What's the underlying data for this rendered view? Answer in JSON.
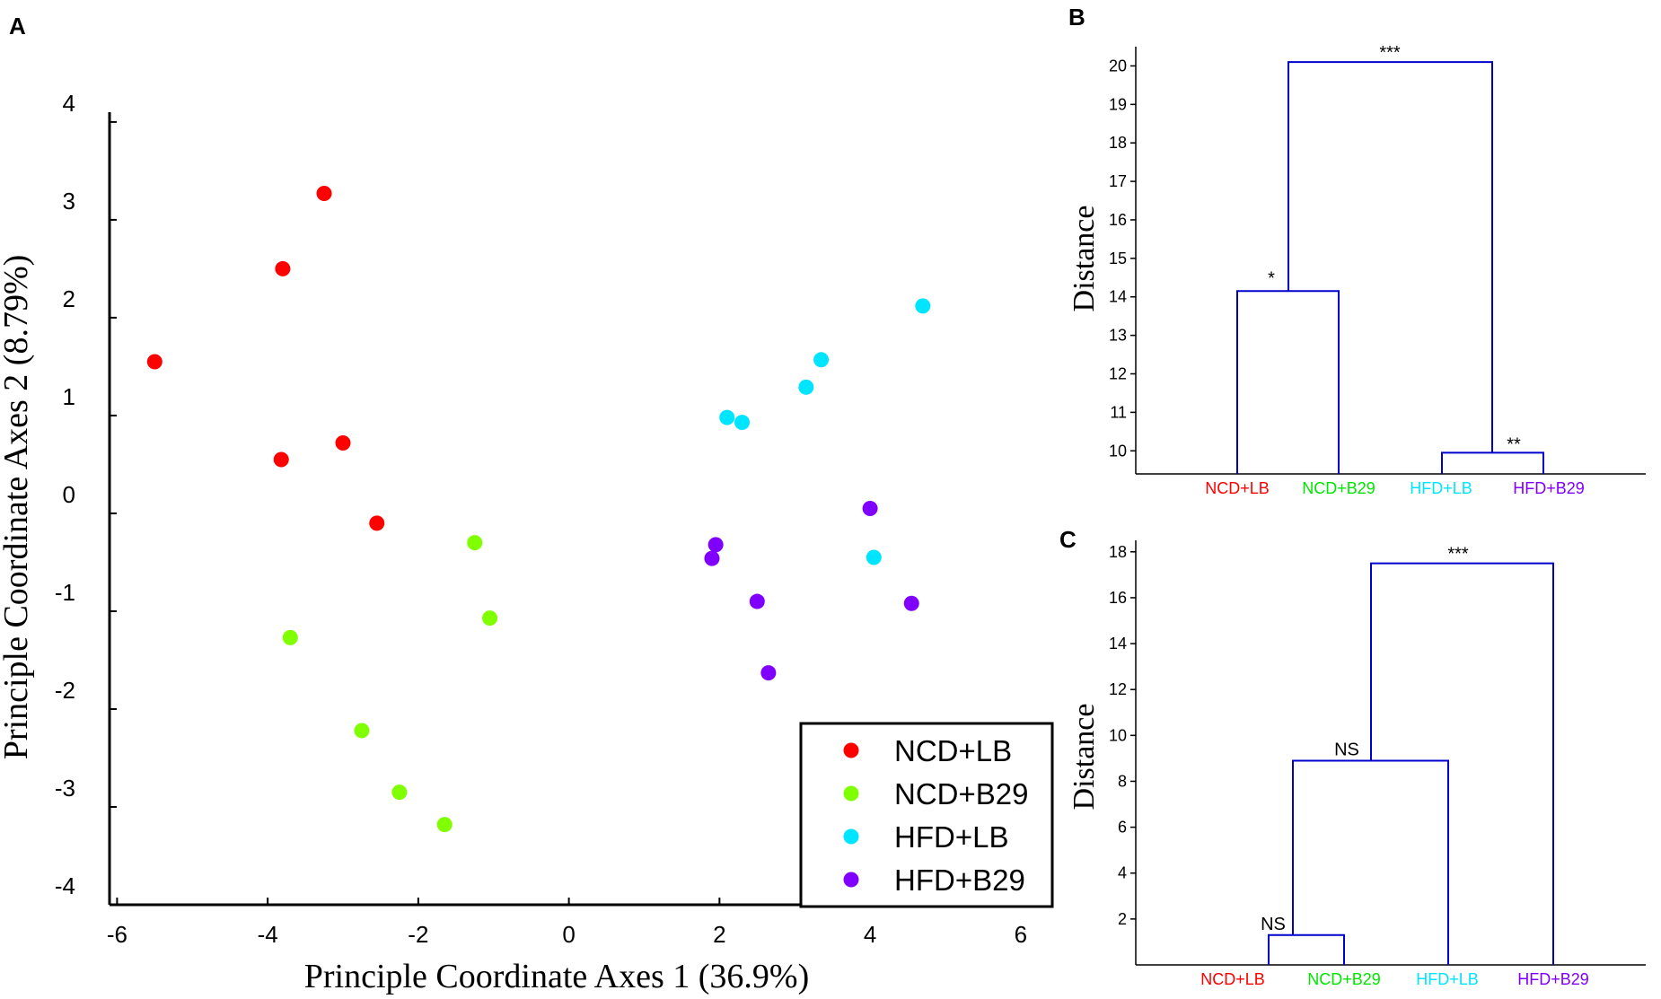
{
  "chart_data": [
    {
      "panel": "A",
      "type": "scatter",
      "xlabel": "Principle Coordinate Axes 1 (36.9%)",
      "ylabel": "Principle Coordinate Axes 2 (8.79%)",
      "xlim": [
        -6.1,
        6.3
      ],
      "ylim": [
        -4,
        4.1
      ],
      "xticks": [
        -6,
        -4,
        -2,
        0,
        2,
        4,
        6
      ],
      "yticks": [
        -4,
        -3,
        -2,
        -1,
        0,
        1,
        2,
        3,
        4
      ],
      "legend_position": "bottom-right",
      "series": [
        {
          "name": "NCD+LB",
          "color": "#ff0000",
          "points": [
            [
              -5.5,
              1.55
            ],
            [
              -3.25,
              3.27
            ],
            [
              -3.8,
              2.5
            ],
            [
              -3.82,
              0.55
            ],
            [
              -3.0,
              0.72
            ],
            [
              -2.55,
              -0.1
            ]
          ]
        },
        {
          "name": "NCD+B29",
          "color": "#80ff00",
          "points": [
            [
              -3.7,
              -1.27
            ],
            [
              -1.25,
              -0.3
            ],
            [
              -1.05,
              -1.07
            ],
            [
              -2.75,
              -2.22
            ],
            [
              -2.25,
              -2.85
            ],
            [
              -1.65,
              -3.18
            ]
          ]
        },
        {
          "name": "HFD+LB",
          "color": "#00e5ff",
          "points": [
            [
              4.7,
              2.12
            ],
            [
              3.35,
              1.57
            ],
            [
              3.15,
              1.29
            ],
            [
              2.1,
              0.98
            ],
            [
              2.3,
              0.93
            ],
            [
              4.05,
              -0.45
            ]
          ]
        },
        {
          "name": "HFD+B29",
          "color": "#8000ff",
          "points": [
            [
              4.0,
              0.05
            ],
            [
              1.95,
              -0.32
            ],
            [
              1.9,
              -0.46
            ],
            [
              2.5,
              -0.9
            ],
            [
              4.55,
              -0.92
            ],
            [
              2.65,
              -1.63
            ]
          ]
        }
      ]
    },
    {
      "panel": "B",
      "type": "dendrogram",
      "ylabel": "Distance",
      "ylim": [
        9.4,
        20.5
      ],
      "yticks": [
        10,
        11,
        12,
        13,
        14,
        15,
        16,
        17,
        18,
        19,
        20
      ],
      "leaves": [
        {
          "label": "NCD+LB",
          "color": "#ff0000"
        },
        {
          "label": "NCD+B29",
          "color": "#00e600"
        },
        {
          "label": "HFD+LB",
          "color": "#00e5ff"
        },
        {
          "label": "HFD+B29",
          "color": "#8000ff"
        }
      ],
      "merges": [
        {
          "left": "NCD+LB",
          "right": "NCD+B29",
          "height": 14.15,
          "label": "*"
        },
        {
          "left": "HFD+LB",
          "right": "HFD+B29",
          "height": 9.95,
          "label": "**"
        },
        {
          "left": "cluster-1",
          "right": "cluster-2",
          "height": 20.1,
          "label": "***"
        }
      ],
      "leaf_baseline": 9.4
    },
    {
      "panel": "C",
      "type": "dendrogram",
      "ylabel": "Distance",
      "ylim": [
        0,
        18.5
      ],
      "yticks": [
        2,
        4,
        6,
        8,
        10,
        12,
        14,
        16,
        18
      ],
      "leaves": [
        {
          "label": "NCD+LB",
          "color": "#ff0000"
        },
        {
          "label": "NCD+B29",
          "color": "#00e600"
        },
        {
          "label": "HFD+LB",
          "color": "#00e5ff"
        },
        {
          "label": "HFD+B29",
          "color": "#8000ff"
        }
      ],
      "merges": [
        {
          "left": "NCD+LB",
          "right": "NCD+B29",
          "height": 1.3,
          "label": "NS"
        },
        {
          "left": "cluster-1",
          "right": "HFD+LB",
          "height": 8.9,
          "label": "NS"
        },
        {
          "left": "cluster-2",
          "right": "HFD+B29",
          "height": 17.5,
          "label": "***"
        }
      ],
      "leaf_baseline": 0
    }
  ],
  "panel_labels": {
    "a": "A",
    "b": "B",
    "c": "C"
  },
  "line_color": "#0000cc"
}
